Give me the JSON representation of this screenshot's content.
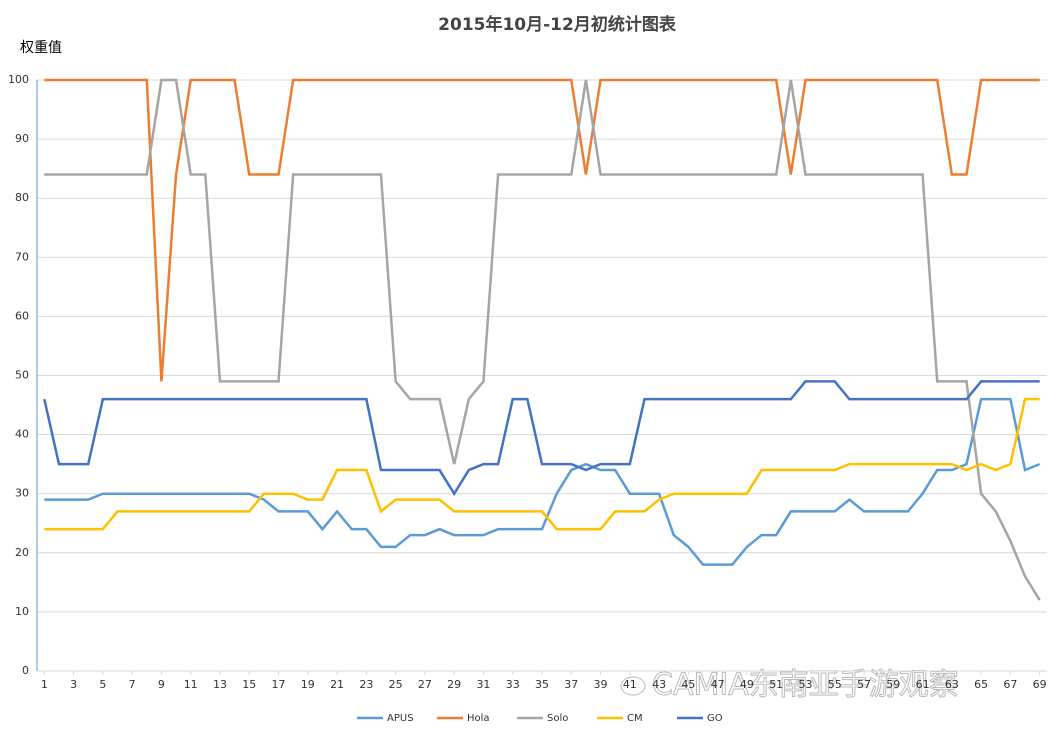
{
  "chart_data": {
    "type": "line",
    "title": "2015年10月-12月初统计图表",
    "y_label": "权重值",
    "watermark": "CAMIA东南亚手游观察",
    "x": [
      1,
      2,
      3,
      4,
      5,
      6,
      7,
      8,
      9,
      10,
      11,
      12,
      13,
      14,
      15,
      16,
      17,
      18,
      19,
      20,
      21,
      22,
      23,
      24,
      25,
      26,
      27,
      28,
      29,
      30,
      31,
      32,
      33,
      34,
      35,
      36,
      37,
      38,
      39,
      40,
      41,
      42,
      43,
      44,
      45,
      46,
      47,
      48,
      49,
      50,
      51,
      52,
      53,
      54,
      55,
      56,
      57,
      58,
      59,
      60,
      61,
      62,
      63,
      64,
      65,
      66,
      67,
      68,
      69
    ],
    "xlim": [
      0.5,
      69.5
    ],
    "xticks": [
      1,
      3,
      5,
      7,
      9,
      11,
      13,
      15,
      17,
      19,
      21,
      23,
      25,
      27,
      29,
      31,
      33,
      35,
      37,
      39,
      41,
      43,
      45,
      47,
      49,
      51,
      53,
      55,
      57,
      59,
      61,
      63,
      65,
      67,
      69
    ],
    "ylim": [
      0,
      100
    ],
    "yticks": [
      0,
      10,
      20,
      30,
      40,
      50,
      60,
      70,
      80,
      90,
      100
    ],
    "grid": true,
    "legend": "bottom",
    "series": [
      {
        "name": "APUS",
        "color": "#5b9bd5",
        "values": [
          29,
          29,
          29,
          29,
          30,
          30,
          30,
          30,
          30,
          30,
          30,
          30,
          30,
          30,
          30,
          29,
          27,
          27,
          27,
          24,
          27,
          24,
          24,
          21,
          21,
          23,
          23,
          24,
          23,
          23,
          23,
          24,
          24,
          24,
          24,
          30,
          34,
          35,
          34,
          34,
          30,
          30,
          30,
          23,
          21,
          18,
          18,
          18,
          21,
          23,
          23,
          27,
          27,
          27,
          27,
          29,
          27,
          27,
          27,
          27,
          30,
          34,
          34,
          35,
          46,
          46,
          46,
          34,
          35
        ]
      },
      {
        "name": "Hola",
        "color": "#ed7d31",
        "values": [
          100,
          100,
          100,
          100,
          100,
          100,
          100,
          100,
          49,
          84,
          100,
          100,
          100,
          100,
          84,
          84,
          84,
          100,
          100,
          100,
          100,
          100,
          100,
          100,
          100,
          100,
          100,
          100,
          100,
          100,
          100,
          100,
          100,
          100,
          100,
          100,
          100,
          84,
          100,
          100,
          100,
          100,
          100,
          100,
          100,
          100,
          100,
          100,
          100,
          100,
          100,
          84,
          100,
          100,
          100,
          100,
          100,
          100,
          100,
          100,
          100,
          100,
          84,
          84,
          100,
          100,
          100,
          100,
          100
        ]
      },
      {
        "name": "Solo",
        "color": "#a5a5a5",
        "values": [
          84,
          84,
          84,
          84,
          84,
          84,
          84,
          84,
          100,
          100,
          84,
          84,
          49,
          49,
          49,
          49,
          49,
          84,
          84,
          84,
          84,
          84,
          84,
          84,
          49,
          46,
          46,
          46,
          35,
          46,
          49,
          84,
          84,
          84,
          84,
          84,
          84,
          100,
          84,
          84,
          84,
          84,
          84,
          84,
          84,
          84,
          84,
          84,
          84,
          84,
          84,
          100,
          84,
          84,
          84,
          84,
          84,
          84,
          84,
          84,
          84,
          49,
          49,
          49,
          30,
          27,
          22,
          16,
          12
        ]
      },
      {
        "name": "CM",
        "color": "#ffc000",
        "values": [
          24,
          24,
          24,
          24,
          24,
          27,
          27,
          27,
          27,
          27,
          27,
          27,
          27,
          27,
          27,
          30,
          30,
          30,
          29,
          29,
          34,
          34,
          34,
          27,
          29,
          29,
          29,
          29,
          27,
          27,
          27,
          27,
          27,
          27,
          27,
          24,
          24,
          24,
          24,
          27,
          27,
          27,
          29,
          30,
          30,
          30,
          30,
          30,
          30,
          34,
          34,
          34,
          34,
          34,
          34,
          35,
          35,
          35,
          35,
          35,
          35,
          35,
          35,
          34,
          35,
          34,
          35,
          46,
          46
        ]
      },
      {
        "name": "GO",
        "color": "#4472c4",
        "values": [
          46,
          35,
          35,
          35,
          46,
          46,
          46,
          46,
          46,
          46,
          46,
          46,
          46,
          46,
          46,
          46,
          46,
          46,
          46,
          46,
          46,
          46,
          46,
          34,
          34,
          34,
          34,
          34,
          30,
          34,
          35,
          35,
          46,
          46,
          35,
          35,
          35,
          34,
          35,
          35,
          35,
          46,
          46,
          46,
          46,
          46,
          46,
          46,
          46,
          46,
          46,
          46,
          49,
          49,
          49,
          46,
          46,
          46,
          46,
          46,
          46,
          46,
          46,
          46,
          49,
          49,
          49,
          49,
          49
        ]
      }
    ]
  }
}
